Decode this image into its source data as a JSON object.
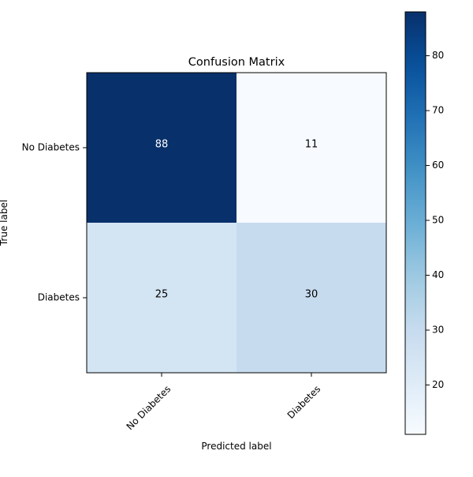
{
  "chart_data": {
    "type": "heatmap",
    "title": "Confusion Matrix",
    "xlabel": "Predicted label",
    "ylabel": "True label",
    "x_categories": [
      "No Diabetes",
      "Diabetes"
    ],
    "y_categories": [
      "No Diabetes",
      "Diabetes"
    ],
    "values": [
      [
        88,
        11
      ],
      [
        25,
        30
      ]
    ],
    "colormap": "Blues",
    "colorbar": {
      "min": 11,
      "max": 88,
      "ticks": [
        20,
        30,
        40,
        50,
        60,
        70,
        80
      ]
    },
    "grid": false
  },
  "colors": {
    "dark_text": "#000000",
    "light_text": "#ffffff"
  }
}
